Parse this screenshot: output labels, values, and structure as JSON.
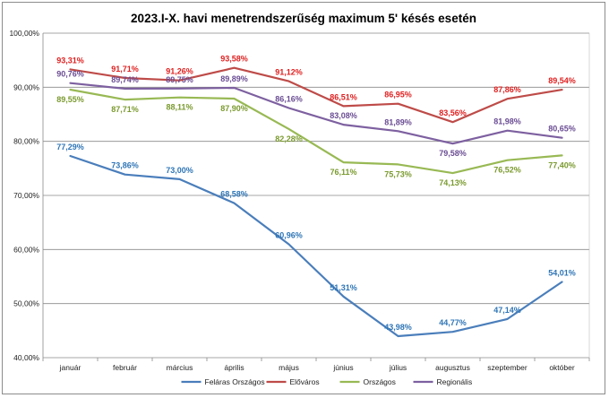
{
  "chart_data": {
    "type": "line",
    "title": "2023.I-X. havi menetrendszerűség  maximum 5' késés esetén",
    "xlabel": "",
    "ylabel": "",
    "ylim": [
      40,
      100
    ],
    "yticks": [
      40,
      50,
      60,
      70,
      80,
      90,
      100
    ],
    "ytick_labels": [
      "40,00%",
      "50,00%",
      "60,00%",
      "70,00%",
      "80,00%",
      "90,00%",
      "100,00%"
    ],
    "grid": true,
    "legend_position": "bottom",
    "categories": [
      "január",
      "február",
      "március",
      "április",
      "május",
      "június",
      "július",
      "augusztus",
      "szeptember",
      "október"
    ],
    "series": [
      {
        "name": "Feláras Országos",
        "color": "#4a7ebb",
        "values": [
          77.29,
          73.86,
          73.0,
          68.58,
          60.96,
          51.31,
          43.98,
          44.77,
          47.14,
          54.01
        ],
        "labels": [
          "77,29%",
          "73,86%",
          "73,00%",
          "68,58%",
          "60,96%",
          "51,31%",
          "43,98%",
          "44,77%",
          "47,14%",
          "54,01%"
        ],
        "label_color": "#2e75b6",
        "label_side": [
          "above",
          "above",
          "above",
          "above",
          "above",
          "above",
          "above",
          "above",
          "above",
          "above"
        ]
      },
      {
        "name": "Előváros",
        "color": "#be4b48",
        "values": [
          93.31,
          91.71,
          91.26,
          93.58,
          91.12,
          86.51,
          86.95,
          83.56,
          87.86,
          89.54
        ],
        "labels": [
          "93,31%",
          "91,71%",
          "91,26%",
          "93,58%",
          "91,12%",
          "86,51%",
          "86,95%",
          "83,56%",
          "87,86%",
          "89,54%"
        ],
        "label_color": "#e02020",
        "label_side": [
          "above",
          "above",
          "above",
          "above",
          "above",
          "above",
          "above",
          "above",
          "above",
          "above"
        ]
      },
      {
        "name": "Országos",
        "color": "#98b954",
        "values": [
          89.55,
          87.71,
          88.11,
          87.9,
          82.28,
          76.11,
          75.73,
          74.13,
          76.52,
          77.4
        ],
        "labels": [
          "89,55%",
          "87,71%",
          "88,11%",
          "87,90%",
          "82,28%",
          "76,11%",
          "75,73%",
          "74,13%",
          "76,52%",
          "77,40%"
        ],
        "label_color": "#7a9a2e",
        "label_side": [
          "below",
          "below",
          "below",
          "below",
          "below",
          "below",
          "below",
          "below",
          "below",
          "below"
        ]
      },
      {
        "name": "Regionális",
        "color": "#7d60a0",
        "values": [
          90.76,
          89.74,
          89.75,
          89.89,
          86.16,
          83.08,
          81.89,
          79.58,
          81.98,
          80.65
        ],
        "labels": [
          "90,76%",
          "89,74%",
          "89,75%",
          "89,89%",
          "86,16%",
          "83,08%",
          "81,89%",
          "79,58%",
          "81,98%",
          "80,65%"
        ],
        "label_color": "#6a4c93",
        "label_side": [
          "above",
          "above",
          "above",
          "above",
          "above",
          "above",
          "above",
          "below",
          "above",
          "above"
        ]
      }
    ]
  }
}
